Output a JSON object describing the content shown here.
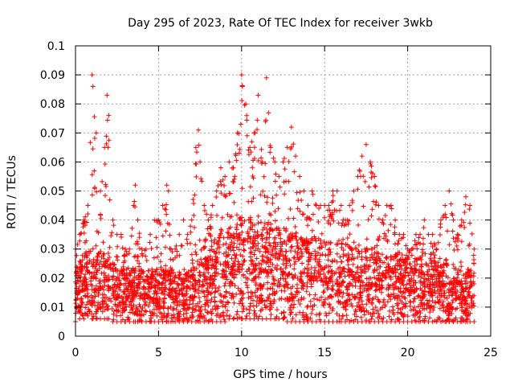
{
  "chart_data": {
    "type": "scatter",
    "title": "Day 295 of 2023, Rate Of TEC Index for receiver 3wkb",
    "xlabel": "GPS time / hours",
    "ylabel": "ROTI / TECUs",
    "xlim": [
      0,
      25
    ],
    "ylim": [
      0,
      0.1
    ],
    "x_ticks": [
      "0",
      "5",
      "10",
      "15",
      "20",
      "25"
    ],
    "y_ticks": [
      "0",
      "0.01",
      "0.02",
      "0.03",
      "0.04",
      "0.05",
      "0.06",
      "0.07",
      "0.08",
      "0.09",
      "0.1"
    ],
    "grid": true,
    "marker": "+",
    "color": "#ff0000",
    "series": [
      {
        "x": [
          0.0,
          0.25,
          0.5,
          0.75,
          1.0,
          1.05,
          1.25,
          1.5,
          1.75,
          1.9,
          2.0,
          2.25,
          2.5,
          2.75,
          3.0,
          3.25,
          3.5,
          3.6,
          3.75,
          4.0,
          4.25,
          4.5,
          4.75,
          5.0,
          5.25,
          5.5,
          5.6,
          5.75,
          6.0,
          6.25,
          6.5,
          6.75,
          7.0,
          7.25,
          7.4,
          7.5,
          7.75,
          8.0,
          8.25,
          8.5,
          8.75,
          9.0,
          9.25,
          9.5,
          9.75,
          10.0,
          10.05,
          10.25,
          10.5,
          10.75,
          11.0,
          11.25,
          11.5,
          11.75,
          12.0,
          12.25,
          12.5,
          12.75,
          13.0,
          13.25,
          13.5,
          13.75,
          14.0,
          14.25,
          14.5,
          14.75,
          15.0,
          15.25,
          15.5,
          15.75,
          16.0,
          16.25,
          16.5,
          16.75,
          17.0,
          17.25,
          17.5,
          17.75,
          18.0,
          18.25,
          18.5,
          18.75,
          19.0,
          19.25,
          19.5,
          19.75,
          20.0,
          20.25,
          20.5,
          20.75,
          21.0,
          21.25,
          21.5,
          21.75,
          22.0,
          22.25,
          22.5,
          22.75,
          23.0,
          23.25,
          23.5,
          23.75,
          24.0
        ],
        "y_min": [
          0.005,
          0.006,
          0.006,
          0.007,
          0.006,
          0.006,
          0.006,
          0.006,
          0.006,
          0.006,
          0.006,
          0.005,
          0.005,
          0.005,
          0.005,
          0.005,
          0.005,
          0.005,
          0.005,
          0.005,
          0.005,
          0.005,
          0.005,
          0.005,
          0.005,
          0.005,
          0.005,
          0.005,
          0.005,
          0.005,
          0.005,
          0.005,
          0.005,
          0.005,
          0.005,
          0.005,
          0.005,
          0.005,
          0.005,
          0.005,
          0.005,
          0.005,
          0.006,
          0.006,
          0.006,
          0.006,
          0.006,
          0.006,
          0.006,
          0.006,
          0.006,
          0.006,
          0.006,
          0.006,
          0.006,
          0.006,
          0.006,
          0.005,
          0.005,
          0.005,
          0.005,
          0.005,
          0.005,
          0.005,
          0.005,
          0.005,
          0.005,
          0.005,
          0.005,
          0.005,
          0.005,
          0.005,
          0.005,
          0.005,
          0.005,
          0.005,
          0.005,
          0.005,
          0.005,
          0.005,
          0.005,
          0.005,
          0.005,
          0.005,
          0.005,
          0.005,
          0.005,
          0.005,
          0.005,
          0.005,
          0.005,
          0.005,
          0.005,
          0.005,
          0.005,
          0.005,
          0.005,
          0.005,
          0.005,
          0.005,
          0.005,
          0.005,
          0.005
        ],
        "y_max": [
          0.03,
          0.035,
          0.04,
          0.045,
          0.09,
          0.086,
          0.07,
          0.05,
          0.065,
          0.083,
          0.076,
          0.04,
          0.035,
          0.035,
          0.03,
          0.03,
          0.045,
          0.052,
          0.04,
          0.03,
          0.03,
          0.035,
          0.04,
          0.04,
          0.045,
          0.052,
          0.05,
          0.03,
          0.03,
          0.035,
          0.04,
          0.035,
          0.04,
          0.065,
          0.071,
          0.06,
          0.045,
          0.04,
          0.045,
          0.05,
          0.058,
          0.055,
          0.06,
          0.058,
          0.07,
          0.09,
          0.086,
          0.08,
          0.065,
          0.07,
          0.083,
          0.06,
          0.089,
          0.065,
          0.06,
          0.055,
          0.06,
          0.065,
          0.072,
          0.062,
          0.055,
          0.05,
          0.045,
          0.05,
          0.045,
          0.045,
          0.045,
          0.045,
          0.05,
          0.05,
          0.045,
          0.04,
          0.045,
          0.05,
          0.055,
          0.062,
          0.066,
          0.06,
          0.055,
          0.045,
          0.04,
          0.045,
          0.045,
          0.04,
          0.035,
          0.035,
          0.03,
          0.03,
          0.035,
          0.035,
          0.04,
          0.035,
          0.035,
          0.03,
          0.04,
          0.045,
          0.05,
          0.04,
          0.035,
          0.04,
          0.048,
          0.045,
          0.03
        ],
        "y_typical": [
          0.013,
          0.015,
          0.016,
          0.017,
          0.016,
          0.016,
          0.016,
          0.016,
          0.016,
          0.016,
          0.016,
          0.014,
          0.013,
          0.013,
          0.013,
          0.013,
          0.013,
          0.013,
          0.013,
          0.013,
          0.013,
          0.013,
          0.013,
          0.013,
          0.013,
          0.013,
          0.013,
          0.013,
          0.012,
          0.012,
          0.012,
          0.012,
          0.013,
          0.014,
          0.014,
          0.014,
          0.015,
          0.016,
          0.018,
          0.019,
          0.02,
          0.02,
          0.021,
          0.021,
          0.022,
          0.023,
          0.023,
          0.023,
          0.023,
          0.023,
          0.023,
          0.022,
          0.022,
          0.022,
          0.021,
          0.021,
          0.021,
          0.02,
          0.02,
          0.02,
          0.019,
          0.019,
          0.019,
          0.019,
          0.019,
          0.019,
          0.018,
          0.018,
          0.018,
          0.018,
          0.018,
          0.017,
          0.017,
          0.017,
          0.017,
          0.017,
          0.017,
          0.017,
          0.017,
          0.016,
          0.016,
          0.016,
          0.016,
          0.016,
          0.016,
          0.015,
          0.015,
          0.015,
          0.015,
          0.015,
          0.015,
          0.015,
          0.015,
          0.014,
          0.014,
          0.014,
          0.014,
          0.014,
          0.013,
          0.013,
          0.013,
          0.013,
          0.013
        ]
      }
    ]
  }
}
